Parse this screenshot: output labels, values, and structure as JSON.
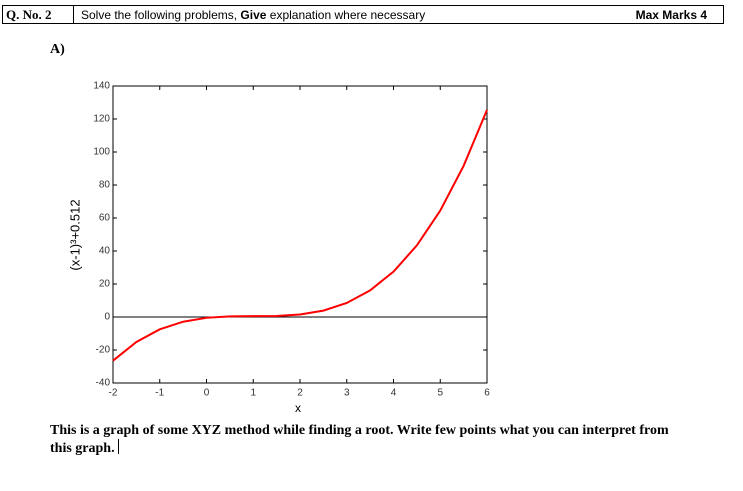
{
  "header": {
    "question": "Q. No. 2",
    "instruction": [
      "Solve the following problems, ",
      "Give",
      " explanation where necessary"
    ],
    "marks": "Max Marks 4"
  },
  "part": "A)",
  "chart_data": {
    "type": "line",
    "x_label": "x",
    "y_label": "(x-1)³+0.512",
    "x": [
      -2,
      -1.5,
      -1,
      -0.5,
      0,
      0.5,
      1,
      1.5,
      2,
      2.5,
      3,
      3.5,
      4,
      4.5,
      5,
      5.5,
      6
    ],
    "values": [
      -26.488,
      -15.113,
      -7.488,
      -2.863,
      -0.488,
      0.387,
      0.512,
      0.637,
      1.512,
      3.887,
      8.512,
      16.137,
      27.512,
      43.387,
      64.512,
      91.637,
      125.512
    ],
    "color": "#ff0000",
    "hline": 0,
    "xlim": [
      -2,
      6
    ],
    "xticks": [
      -2,
      -1,
      0,
      1,
      2,
      3,
      4,
      5,
      6
    ],
    "ylim": [
      -40,
      140
    ],
    "yticks": [
      -40,
      -20,
      0,
      20,
      40,
      60,
      80,
      100,
      120,
      140
    ]
  },
  "caption": "This is a graph of some XYZ method while finding a root. Write few points what you can interpret from this graph."
}
